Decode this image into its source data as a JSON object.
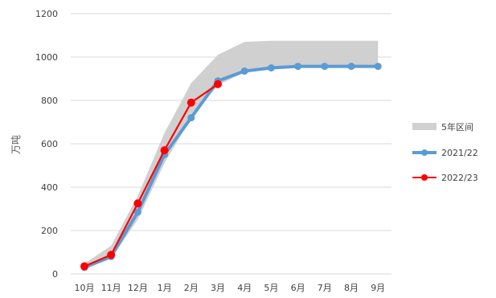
{
  "chart_data": {
    "type": "line",
    "title": "",
    "xlabel": "",
    "ylabel": "万吨",
    "categories": [
      "10月",
      "11月",
      "12月",
      "1月",
      "2月",
      "3月",
      "4月",
      "5月",
      "6月",
      "7月",
      "8月",
      "9月"
    ],
    "ylim": [
      0,
      1200
    ],
    "yticks": [
      0,
      200,
      400,
      600,
      800,
      1000,
      1200
    ],
    "grid": true,
    "legend": "right",
    "band": {
      "name": "5年区间",
      "color": "#d0d0d0",
      "lower": [
        22,
        70,
        250,
        510,
        720,
        870,
        930,
        950,
        958,
        958,
        958,
        958
      ],
      "upper": [
        48,
        130,
        360,
        650,
        880,
        1010,
        1070,
        1075,
        1075,
        1075,
        1075,
        1075
      ]
    },
    "series": [
      {
        "name": "2021/22",
        "color": "#5b9bd5",
        "values": [
          30,
          80,
          285,
          550,
          720,
          890,
          935,
          950,
          957,
          957,
          957,
          957
        ]
      },
      {
        "name": "2022/23",
        "color": "#ff0000",
        "values": [
          35,
          88,
          325,
          570,
          790,
          875,
          null,
          null,
          null,
          null,
          null,
          null
        ]
      }
    ]
  }
}
